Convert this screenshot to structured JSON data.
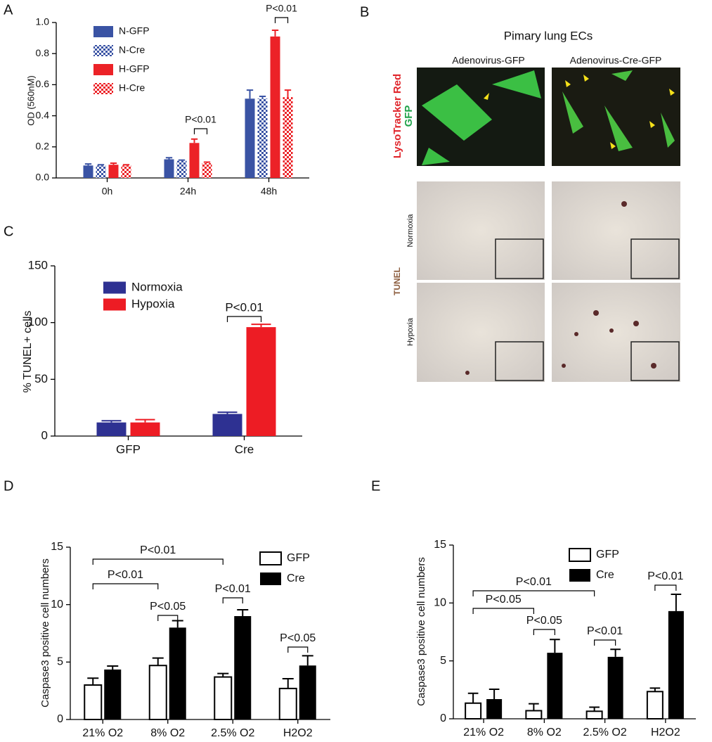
{
  "chart_data": [
    {
      "label": "A",
      "type": "bar",
      "ylabel": "OD (560nM)",
      "categories": [
        "0h",
        "24h",
        "48h"
      ],
      "series": [
        {
          "name": "N-GFP",
          "color": "#3a53a4",
          "pattern": "solid",
          "values": [
            0.08,
            0.12,
            0.51
          ],
          "errors": [
            0.01,
            0.01,
            0.055
          ]
        },
        {
          "name": "N-Cre",
          "color": "#3a53a4",
          "pattern": "checkered",
          "values": [
            0.08,
            0.11,
            0.51
          ],
          "errors": [
            0.005,
            0.005,
            0.015
          ]
        },
        {
          "name": "H-GFP",
          "color": "#ec2227",
          "pattern": "solid",
          "values": [
            0.085,
            0.225,
            0.91
          ],
          "errors": [
            0.01,
            0.025,
            0.04
          ]
        },
        {
          "name": "H-Cre",
          "color": "#ec2227",
          "pattern": "checkered",
          "values": [
            0.08,
            0.095,
            0.52
          ],
          "errors": [
            0.005,
            0.007,
            0.045
          ]
        }
      ],
      "ylim": [
        0,
        1.0
      ],
      "yticks": [
        {
          "value": 0,
          "label": "0.0"
        },
        0.2,
        0.4,
        0.6,
        0.8,
        {
          "value": 1.0,
          "label": "1.0"
        }
      ],
      "annotations": [
        "P<0.01",
        "P<0.01"
      ]
    },
    {
      "label": "C",
      "type": "bar",
      "ylabel": "% TUNEL+ cells",
      "categories": [
        "GFP",
        "Cre"
      ],
      "series": [
        {
          "name": "Normoxia",
          "color": "#2e3192",
          "pattern": "solid",
          "values": [
            12,
            19.5
          ],
          "errors": [
            1.5,
            1.5
          ]
        },
        {
          "name": "Hypoxia",
          "color": "#ed1c24",
          "pattern": "solid",
          "values": [
            12,
            96
          ],
          "errors": [
            2.5,
            2.5
          ]
        }
      ],
      "ylim": [
        0,
        150
      ],
      "yticks": [
        0,
        50,
        100,
        150
      ],
      "annotations": [
        "P<0.01"
      ]
    },
    {
      "label": "D",
      "type": "bar",
      "ylabel": "Caspase3 positive cell numbers",
      "categories": [
        "21% O2",
        "8% O2",
        "2.5% O2",
        "H2O2"
      ],
      "series": [
        {
          "name": "GFP",
          "color": "#ffffff",
          "pattern": "solid",
          "values": [
            3.0,
            4.7,
            3.7,
            2.7
          ],
          "errors": [
            0.6,
            0.65,
            0.3,
            0.85
          ]
        },
        {
          "name": "Cre",
          "color": "#000000",
          "pattern": "solid",
          "values": [
            4.35,
            8.0,
            9.0,
            4.7
          ],
          "errors": [
            0.3,
            0.6,
            0.55,
            0.85
          ]
        }
      ],
      "ylim": [
        0,
        15
      ],
      "yticks": [
        0,
        5,
        10,
        15
      ],
      "annotations": [
        "P<0.01",
        "P<0.01",
        "P<0.05",
        "P<0.01",
        "P<0.05"
      ]
    },
    {
      "label": "E",
      "type": "bar",
      "ylabel": "Caspase3 positive cell numbers",
      "categories": [
        "21% O2",
        "8% O2",
        "2.5% O2",
        "H2O2"
      ],
      "series": [
        {
          "name": "GFP",
          "color": "#ffffff",
          "pattern": "solid",
          "values": [
            1.35,
            0.7,
            0.65,
            2.35
          ],
          "errors": [
            0.85,
            0.6,
            0.35,
            0.3
          ]
        },
        {
          "name": "Cre",
          "color": "#000000",
          "pattern": "solid",
          "values": [
            1.7,
            5.7,
            5.35,
            9.3
          ],
          "errors": [
            0.85,
            1.15,
            0.65,
            1.45
          ]
        }
      ],
      "ylim": [
        0,
        15
      ],
      "yticks": [
        0,
        5,
        10,
        15
      ],
      "annotations": [
        "P<0.01",
        "P<0.05",
        "P<0.05",
        "P<0.01",
        "P<0.01"
      ]
    }
  ],
  "panel_b": {
    "label": "B",
    "title": "Pimary lung ECs",
    "columns": [
      "Adenovirus-GFP",
      "Adenovirus-Cre-GFP"
    ],
    "stain_red": "LysoTracker Red",
    "stain_green": "GFP",
    "tunel": "TUNEL",
    "rows": [
      "Normoxia",
      "Hypoxia"
    ]
  }
}
